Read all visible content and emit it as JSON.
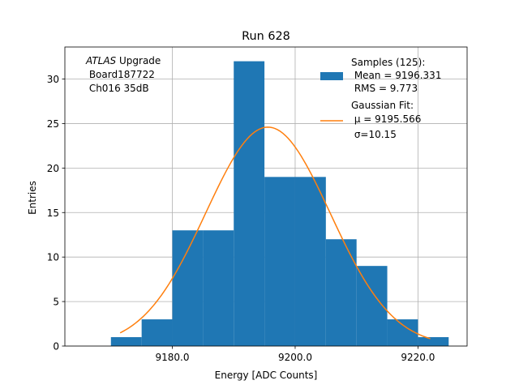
{
  "chart_data": {
    "type": "bar",
    "title": "Run 628",
    "xlabel": "Energy [ADC Counts]",
    "ylabel": "Entries",
    "xlim": [
      9162.5,
      9228.0
    ],
    "ylim": [
      0,
      33.6
    ],
    "grid": true,
    "x_ticks": [
      9180.0,
      9200.0,
      9220.0
    ],
    "x_tick_labels": [
      "9180.0",
      "9200.0",
      "9220.0"
    ],
    "y_ticks": [
      0,
      5,
      10,
      15,
      20,
      25,
      30
    ],
    "y_tick_labels": [
      "0",
      "5",
      "10",
      "15",
      "20",
      "25",
      "30"
    ],
    "histogram": {
      "bin_edges": [
        9170,
        9175,
        9180,
        9185,
        9190,
        9195,
        9200,
        9205,
        9210,
        9215,
        9220,
        9225
      ],
      "counts": [
        1,
        3,
        13,
        13,
        32,
        19,
        19,
        12,
        9,
        3,
        1
      ],
      "color": "#1f77b4"
    },
    "gaussian_fit": {
      "mu": 9195.566,
      "sigma": 10.15,
      "amplitude": 24.6,
      "x_range": [
        9171.5,
        9222.0
      ],
      "color": "#ff7f0e"
    },
    "annotation": {
      "italic": "ATLAS",
      "line1_rest": " Upgrade",
      "line2": " Board187722",
      "line3": " Ch016 35dB"
    },
    "legend": {
      "position": "top-right",
      "samples": [
        "Samples (125):",
        " Mean = 9196.331",
        " RMS = 9.773"
      ],
      "fit": [
        "Gaussian Fit:",
        " μ = 9195.566",
        " σ=10.15"
      ]
    }
  }
}
